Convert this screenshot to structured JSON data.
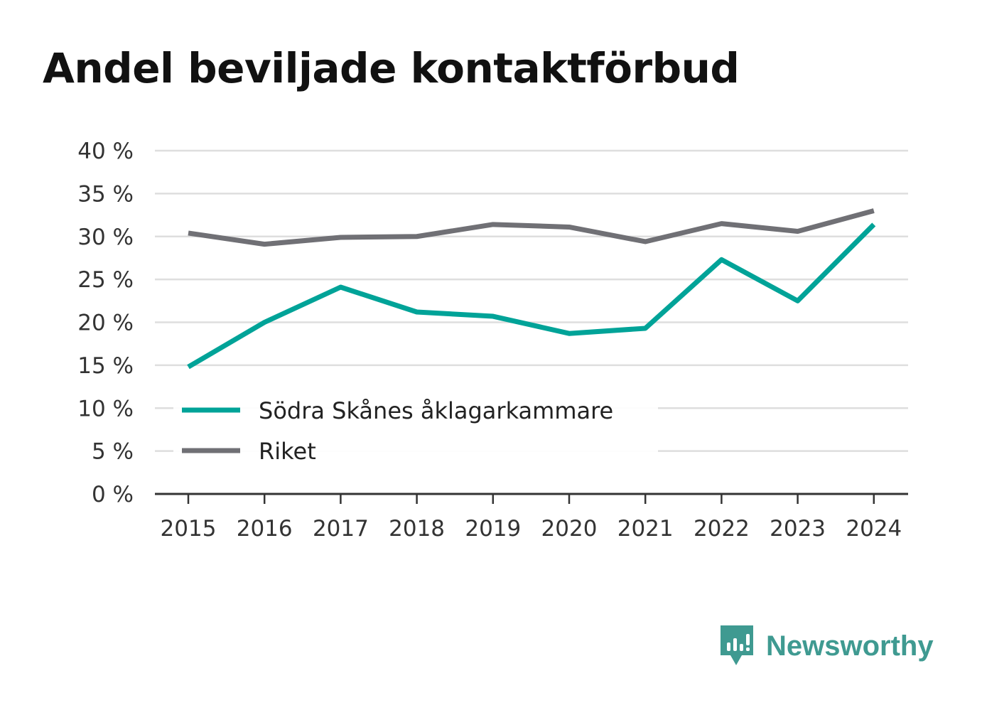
{
  "chart_data": {
    "type": "line",
    "title": "Andel beviljade kontaktförbud",
    "xlabel": "",
    "ylabel": "",
    "x": [
      "2015",
      "2016",
      "2017",
      "2018",
      "2019",
      "2020",
      "2021",
      "2022",
      "2023",
      "2024"
    ],
    "ylim": [
      0,
      40
    ],
    "yticks": [
      0,
      5,
      10,
      15,
      20,
      25,
      30,
      35,
      40
    ],
    "ytick_labels": [
      "0 %",
      "5 %",
      "10 %",
      "15 %",
      "20 %",
      "25 %",
      "30 %",
      "35 %",
      "40 %"
    ],
    "grid": true,
    "legend_position": "bottom-left",
    "series": [
      {
        "name": "Södra Skånes åklagarkammare",
        "color": "#00a398",
        "values": [
          14.8,
          20.0,
          24.1,
          21.2,
          20.7,
          18.7,
          19.3,
          27.3,
          22.5,
          31.4
        ]
      },
      {
        "name": "Riket",
        "color": "#707075",
        "values": [
          30.4,
          29.1,
          29.9,
          30.0,
          31.4,
          31.1,
          29.4,
          31.5,
          30.6,
          33.0
        ]
      }
    ]
  },
  "branding": {
    "name": "Newsworthy",
    "icon": "newsworthy-logo-icon",
    "color": "#3f9a91"
  }
}
